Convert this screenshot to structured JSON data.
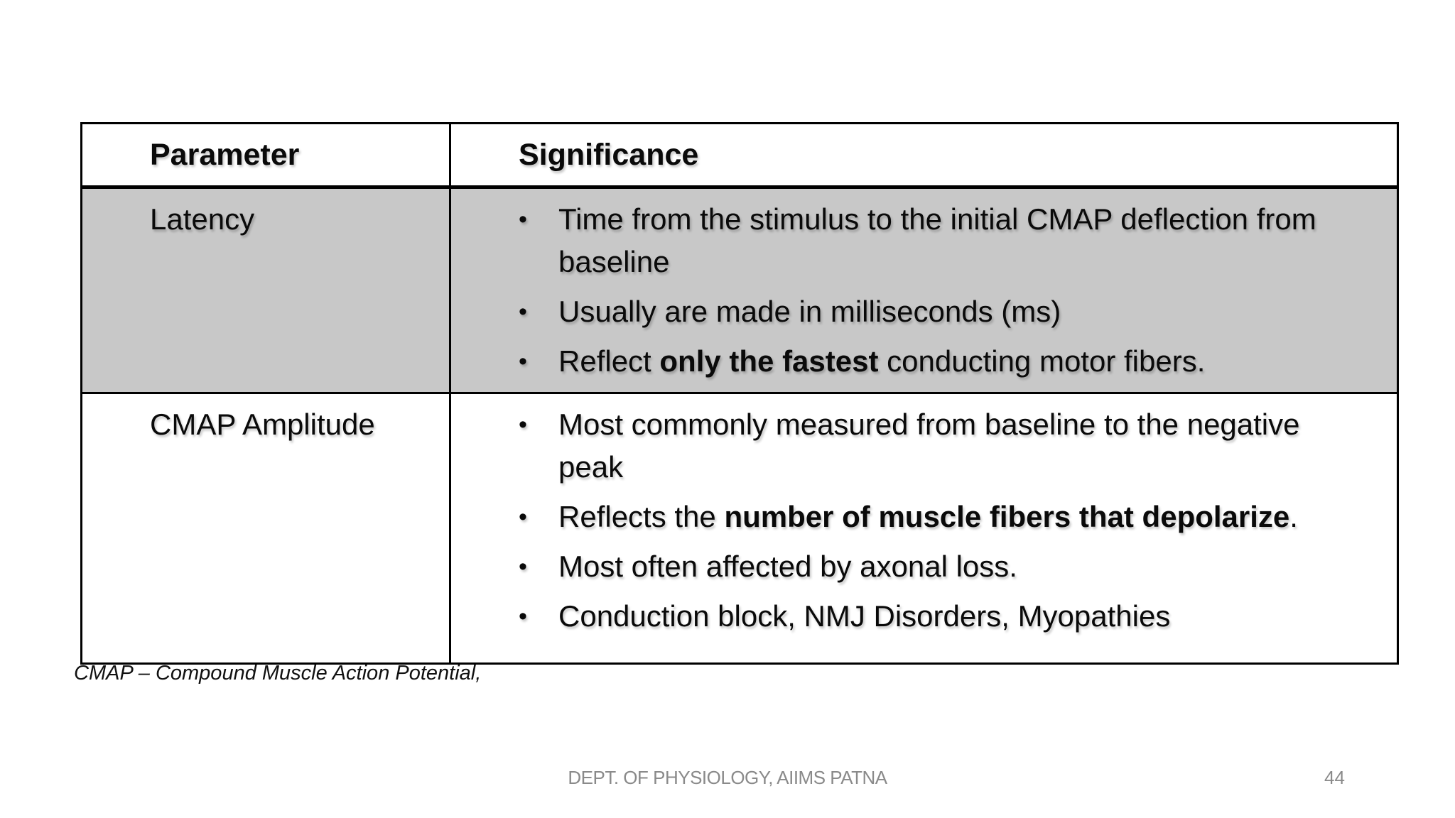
{
  "slide": {
    "table": {
      "headers": [
        "Parameter",
        "Significance"
      ],
      "rows": [
        {
          "parameter": "Latency",
          "shaded": true,
          "bullets": [
            [
              {
                "text": "Time from the stimulus to the initial CMAP deflection from baseline",
                "bold": false
              }
            ],
            [
              {
                "text": "Usually are made in milliseconds (ms)",
                "bold": false
              }
            ],
            [
              {
                "text": "Reflect ",
                "bold": false
              },
              {
                "text": "only the fastest",
                "bold": true
              },
              {
                "text": " conducting motor fibers.",
                "bold": false
              }
            ]
          ]
        },
        {
          "parameter": "CMAP Amplitude",
          "shaded": false,
          "bullets": [
            [
              {
                "text": "Most commonly measured from baseline to the negative peak",
                "bold": false
              }
            ],
            [
              {
                "text": "Reflects the ",
                "bold": false
              },
              {
                "text": "number of muscle fibers that depolarize",
                "bold": true
              },
              {
                "text": ".",
                "bold": false
              }
            ],
            [
              {
                "text": "Most often affected by axonal loss.",
                "bold": false
              }
            ],
            [
              {
                "text": "Conduction block, NMJ Disorders, Myopathies",
                "bold": false
              }
            ]
          ]
        }
      ]
    },
    "footnote": "CMAP – Compound Muscle Action Potential,",
    "footer": {
      "department": "DEPT. OF PHYSIOLOGY, AIIMS PATNA",
      "page_number": "44"
    }
  },
  "colors": {
    "shaded_row": "#c8c8c8",
    "border": "#000000",
    "footer_text": "#8a8a8a"
  },
  "bullet_glyph": "•"
}
